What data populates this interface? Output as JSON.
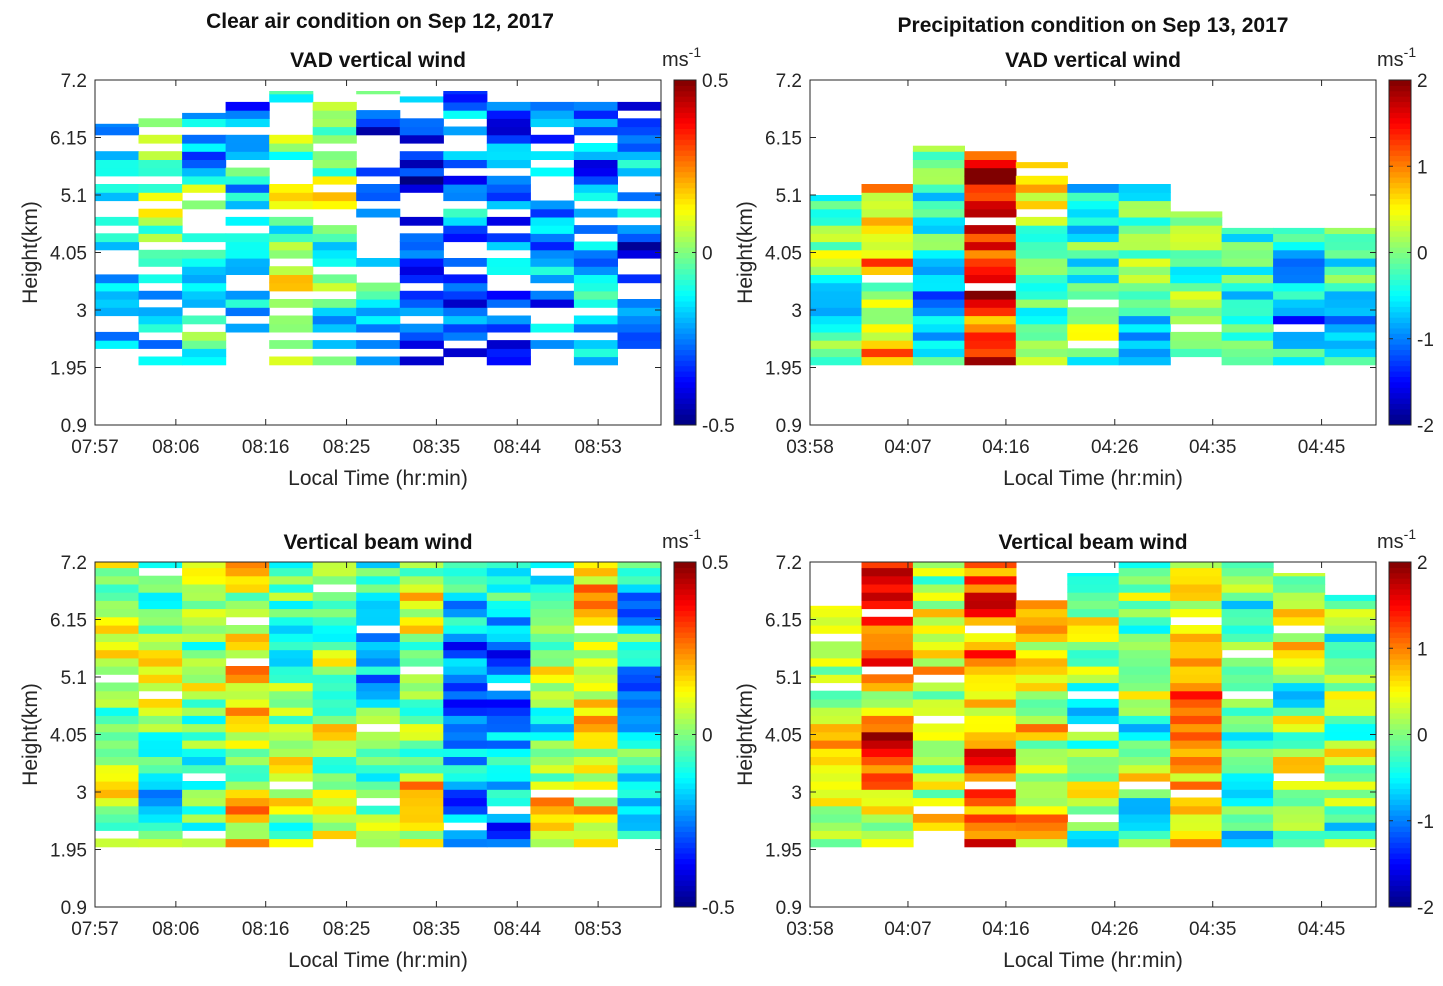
{
  "figure": {
    "left_title": "Clear air condition on Sep 12, 2017",
    "right_title": "Precipitation condition on Sep 13, 2017"
  },
  "colormap": "jet",
  "chart_data": [
    {
      "type": "heatmap",
      "id": "vad_clear",
      "title": "VAD vertical wind",
      "xlabel": "Local Time (hr:min)",
      "ylabel": "Height(km)",
      "x_ticks": [
        "07:57",
        "08:06",
        "08:16",
        "08:25",
        "08:35",
        "08:44",
        "08:53"
      ],
      "y_ticks": [
        "0.9",
        "1.95",
        "3",
        "4.05",
        "5.1",
        "6.15",
        "7.2"
      ],
      "ylim": [
        0.9,
        7.2
      ],
      "x_range": [
        "07:57",
        "09:00"
      ],
      "colorbar": {
        "unit": "ms",
        "unit_exp": "-1",
        "range": [
          -0.5,
          0.5
        ],
        "ticks": [
          "0.5",
          "0",
          "-0.5"
        ]
      },
      "columns": [
        "07:57",
        "08:02",
        "08:06",
        "08:11",
        "08:16",
        "08:20",
        "08:25",
        "08:30",
        "08:35",
        "08:39",
        "08:44",
        "08:49",
        "08:53"
      ],
      "column_heights": [
        [
          2.0,
          6.4
        ],
        [
          2.0,
          6.8
        ],
        [
          2.0,
          6.6
        ],
        [
          2.0,
          7.1
        ],
        [
          2.0,
          7.0
        ],
        [
          2.0,
          6.9
        ],
        [
          2.0,
          7.0
        ],
        [
          2.0,
          6.9
        ],
        [
          2.0,
          7.0
        ],
        [
          2.0,
          6.8
        ],
        [
          2.0,
          6.8
        ],
        [
          2.0,
          6.8
        ],
        [
          2.0,
          6.9
        ]
      ],
      "column_mean": [
        -0.15,
        -0.05,
        -0.15,
        -0.2,
        -0.05,
        -0.05,
        -0.25,
        -0.35,
        -0.3,
        -0.3,
        -0.25,
        -0.2,
        -0.25
      ],
      "missing_fraction": 0.35,
      "seed": 11
    },
    {
      "type": "heatmap",
      "id": "vad_precip",
      "title": "VAD vertical wind",
      "xlabel": "Local Time (hr:min)",
      "ylabel": "Height(km)",
      "x_ticks": [
        "03:58",
        "04:07",
        "04:16",
        "04:26",
        "04:35",
        "04:45"
      ],
      "y_ticks": [
        "0.9",
        "1.95",
        "3",
        "4.05",
        "5.1",
        "6.15",
        "7.2"
      ],
      "ylim": [
        0.9,
        7.2
      ],
      "x_range": [
        "03:58",
        "04:50"
      ],
      "colorbar": {
        "unit": "ms",
        "unit_exp": "-1",
        "range": [
          -2,
          2
        ],
        "ticks": [
          "2",
          "1",
          "0",
          "-1",
          "-2"
        ]
      },
      "columns": [
        "03:58",
        "04:02",
        "04:07",
        "04:11",
        "04:16",
        "04:21",
        "04:26",
        "04:30",
        "04:35",
        "04:40",
        "04:45"
      ],
      "column_heights": [
        [
          2.0,
          5.1
        ],
        [
          2.0,
          5.3
        ],
        [
          2.0,
          6.0
        ],
        [
          2.0,
          5.9
        ],
        [
          2.0,
          5.7
        ],
        [
          2.0,
          5.3
        ],
        [
          2.0,
          5.3
        ],
        [
          2.0,
          4.8
        ],
        [
          2.0,
          4.5
        ],
        [
          2.0,
          4.5
        ],
        [
          2.0,
          4.5
        ]
      ],
      "column_mean": [
        0.0,
        0.7,
        -0.3,
        1.6,
        0.3,
        -0.4,
        -0.2,
        0.2,
        -0.3,
        -0.6,
        -0.2
      ],
      "missing_fraction": 0.04,
      "seed": 23
    },
    {
      "type": "heatmap",
      "id": "beam_clear",
      "title": "Vertical beam wind",
      "xlabel": "Local Time (hr:min)",
      "ylabel": "Height(km)",
      "x_ticks": [
        "07:57",
        "08:06",
        "08:16",
        "08:25",
        "08:35",
        "08:44",
        "08:53"
      ],
      "y_ticks": [
        "0.9",
        "1.95",
        "3",
        "4.05",
        "5.1",
        "6.15",
        "7.2"
      ],
      "ylim": [
        0.9,
        7.2
      ],
      "x_range": [
        "07:57",
        "09:00"
      ],
      "colorbar": {
        "unit": "ms",
        "unit_exp": "-1",
        "range": [
          -0.5,
          0.5
        ],
        "ticks": [
          "0.5",
          "0",
          "-0.5"
        ]
      },
      "columns": [
        "07:57",
        "08:02",
        "08:06",
        "08:11",
        "08:16",
        "08:20",
        "08:25",
        "08:30",
        "08:35",
        "08:39",
        "08:44",
        "08:49",
        "08:53"
      ],
      "column_heights": [
        [
          2.0,
          7.2
        ],
        [
          2.0,
          7.2
        ],
        [
          2.0,
          7.2
        ],
        [
          2.0,
          7.2
        ],
        [
          2.0,
          7.2
        ],
        [
          2.0,
          7.2
        ],
        [
          2.0,
          7.2
        ],
        [
          2.0,
          7.2
        ],
        [
          2.0,
          7.2
        ],
        [
          2.0,
          7.2
        ],
        [
          2.0,
          7.2
        ],
        [
          2.0,
          7.2
        ],
        [
          2.0,
          7.2
        ]
      ],
      "column_mean": [
        0.15,
        0.0,
        0.0,
        0.1,
        0.0,
        0.0,
        -0.1,
        0.1,
        -0.2,
        -0.2,
        0.0,
        0.05,
        -0.1
      ],
      "missing_fraction": 0.05,
      "seed": 37
    },
    {
      "type": "heatmap",
      "id": "beam_precip",
      "title": "Vertical beam wind",
      "xlabel": "Local Time (hr:min)",
      "ylabel": "Height(km)",
      "x_ticks": [
        "03:58",
        "04:07",
        "04:16",
        "04:26",
        "04:35",
        "04:45"
      ],
      "y_ticks": [
        "0.9",
        "1.95",
        "3",
        "4.05",
        "5.1",
        "6.15",
        "7.2"
      ],
      "ylim": [
        0.9,
        7.2
      ],
      "x_range": [
        "03:58",
        "04:50"
      ],
      "colorbar": {
        "unit": "ms",
        "unit_exp": "-1",
        "range": [
          -2,
          2
        ],
        "ticks": [
          "2",
          "1",
          "0",
          "-1",
          "-2"
        ]
      },
      "columns": [
        "03:58",
        "04:02",
        "04:07",
        "04:11",
        "04:16",
        "04:21",
        "04:26",
        "04:30",
        "04:35",
        "04:40",
        "04:45"
      ],
      "column_heights": [
        [
          2.0,
          6.4
        ],
        [
          2.0,
          7.2
        ],
        [
          2.0,
          7.2
        ],
        [
          2.0,
          7.2
        ],
        [
          2.0,
          6.6
        ],
        [
          2.0,
          7.0
        ],
        [
          2.0,
          7.2
        ],
        [
          2.0,
          7.2
        ],
        [
          2.0,
          7.2
        ],
        [
          2.0,
          7.0
        ],
        [
          2.0,
          6.6
        ]
      ],
      "column_mean": [
        0.2,
        0.9,
        0.3,
        1.1,
        0.4,
        -0.2,
        0.1,
        0.6,
        -0.2,
        -0.1,
        -0.1
      ],
      "missing_fraction": 0.06,
      "seed": 51
    }
  ]
}
